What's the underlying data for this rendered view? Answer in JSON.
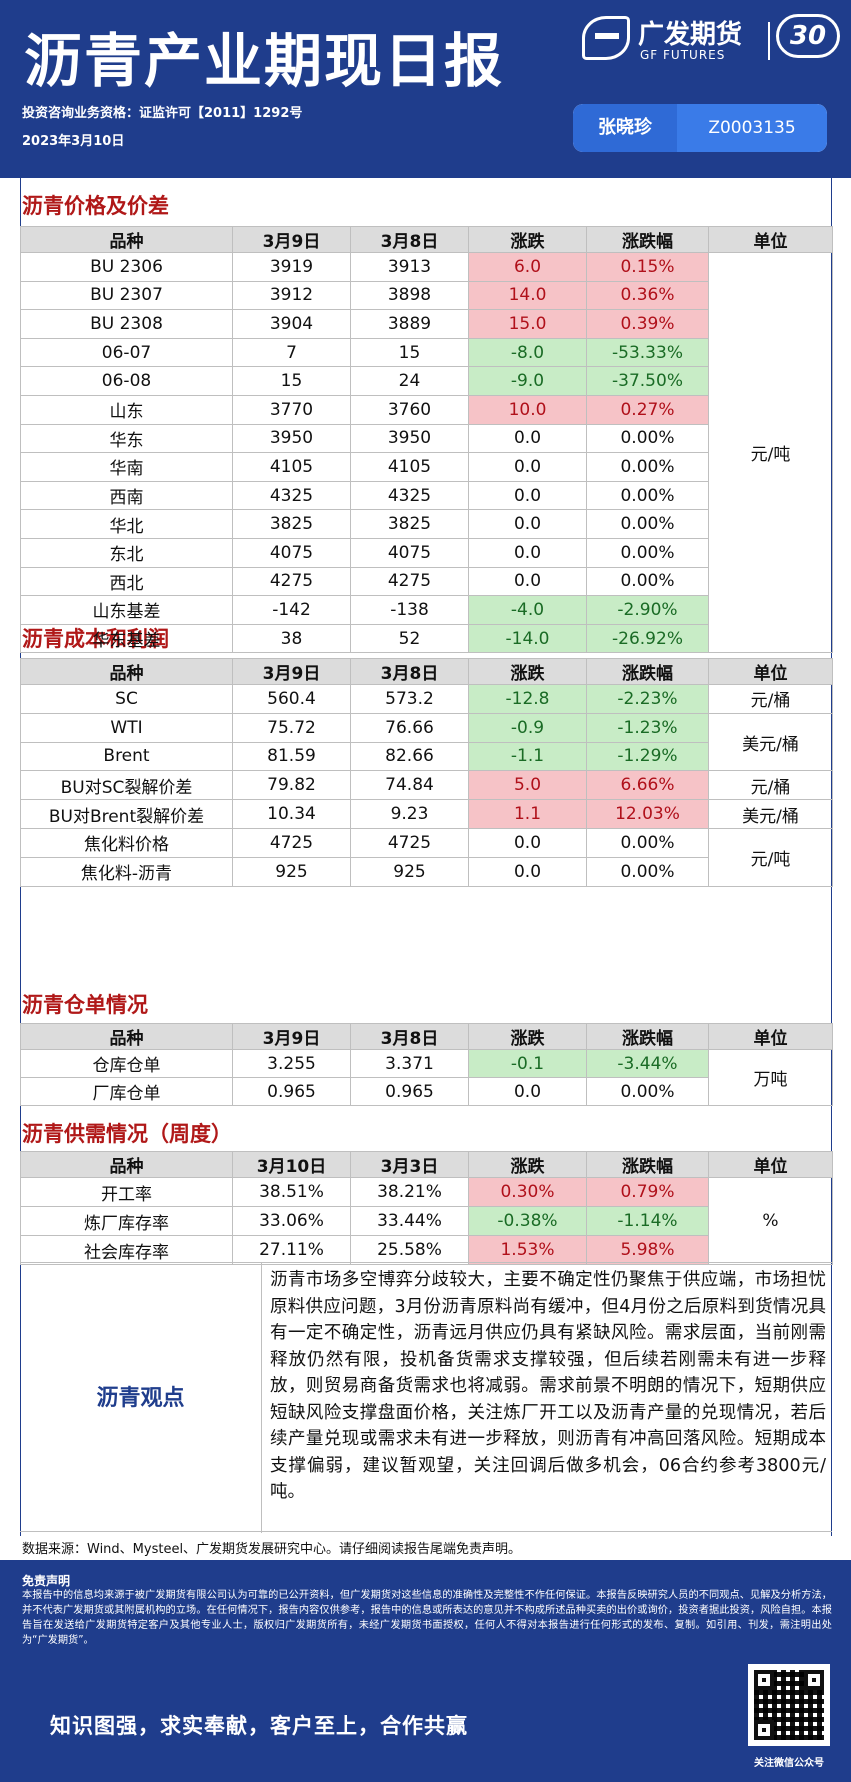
{
  "header": {
    "title": "沥青产业期现日报",
    "logo_cn": "广发期货",
    "logo_en": "GF FUTURES",
    "anniversary": "30",
    "qualification": "投资咨询业务资格：证监许可【2011】1292号",
    "date": "2023年3月10日",
    "author_name": "张晓珍",
    "author_id": "Z0003135"
  },
  "sections": [
    {
      "title": "沥青价格及价差",
      "headers": [
        "品种",
        "3月9日",
        "3月8日",
        "涨跌",
        "涨跌幅",
        "单位"
      ],
      "rows": [
        {
          "name": "BU 2306",
          "v1": "3919",
          "v2": "3913",
          "chg": "6.0",
          "pct": "0.15%",
          "dir": "up"
        },
        {
          "name": "BU 2307",
          "v1": "3912",
          "v2": "3898",
          "chg": "14.0",
          "pct": "0.36%",
          "dir": "up"
        },
        {
          "name": "BU 2308",
          "v1": "3904",
          "v2": "3889",
          "chg": "15.0",
          "pct": "0.39%",
          "dir": "up"
        },
        {
          "name": "06-07",
          "v1": "7",
          "v2": "15",
          "chg": "-8.0",
          "pct": "-53.33%",
          "dir": "down"
        },
        {
          "name": "06-08",
          "v1": "15",
          "v2": "24",
          "chg": "-9.0",
          "pct": "-37.50%",
          "dir": "down"
        },
        {
          "name": "山东",
          "v1": "3770",
          "v2": "3760",
          "chg": "10.0",
          "pct": "0.27%",
          "dir": "up"
        },
        {
          "name": "华东",
          "v1": "3950",
          "v2": "3950",
          "chg": "0.0",
          "pct": "0.00%",
          "dir": "flat"
        },
        {
          "name": "华南",
          "v1": "4105",
          "v2": "4105",
          "chg": "0.0",
          "pct": "0.00%",
          "dir": "flat"
        },
        {
          "name": "西南",
          "v1": "4325",
          "v2": "4325",
          "chg": "0.0",
          "pct": "0.00%",
          "dir": "flat"
        },
        {
          "name": "华北",
          "v1": "3825",
          "v2": "3825",
          "chg": "0.0",
          "pct": "0.00%",
          "dir": "flat"
        },
        {
          "name": "东北",
          "v1": "4075",
          "v2": "4075",
          "chg": "0.0",
          "pct": "0.00%",
          "dir": "flat"
        },
        {
          "name": "西北",
          "v1": "4275",
          "v2": "4275",
          "chg": "0.0",
          "pct": "0.00%",
          "dir": "flat"
        },
        {
          "name": "山东基差",
          "v1": "-142",
          "v2": "-138",
          "chg": "-4.0",
          "pct": "-2.90%",
          "dir": "down"
        },
        {
          "name": "华东基差",
          "v1": "38",
          "v2": "52",
          "chg": "-14.0",
          "pct": "-26.92%",
          "dir": "down"
        }
      ],
      "units": [
        {
          "label": "元/吨",
          "rows": 14
        }
      ]
    },
    {
      "title": "沥青成本和利润",
      "headers": [
        "品种",
        "3月9日",
        "3月8日",
        "涨跌",
        "涨跌幅",
        "单位"
      ],
      "rows": [
        {
          "name": "SC",
          "v1": "560.4",
          "v2": "573.2",
          "chg": "-12.8",
          "pct": "-2.23%",
          "dir": "down"
        },
        {
          "name": "WTI",
          "v1": "75.72",
          "v2": "76.66",
          "chg": "-0.9",
          "pct": "-1.23%",
          "dir": "down"
        },
        {
          "name": "Brent",
          "v1": "81.59",
          "v2": "82.66",
          "chg": "-1.1",
          "pct": "-1.29%",
          "dir": "down"
        },
        {
          "name": "BU对SC裂解价差",
          "v1": "79.82",
          "v2": "74.84",
          "chg": "5.0",
          "pct": "6.66%",
          "dir": "up"
        },
        {
          "name": "BU对Brent裂解价差",
          "v1": "10.34",
          "v2": "9.23",
          "chg": "1.1",
          "pct": "12.03%",
          "dir": "up"
        },
        {
          "name": "焦化料价格",
          "v1": "4725",
          "v2": "4725",
          "chg": "0.0",
          "pct": "0.00%",
          "dir": "flat"
        },
        {
          "name": "焦化料-沥青",
          "v1": "925",
          "v2": "925",
          "chg": "0.0",
          "pct": "0.00%",
          "dir": "flat"
        }
      ],
      "units": [
        {
          "label": "元/桶",
          "rows": 1
        },
        {
          "label": "美元/桶",
          "rows": 2
        },
        {
          "label": "元/桶",
          "rows": 1
        },
        {
          "label": "美元/桶",
          "rows": 1
        },
        {
          "label": "元/吨",
          "rows": 2
        }
      ]
    },
    {
      "title": "沥青仓单情况",
      "headers": [
        "品种",
        "3月9日",
        "3月8日",
        "涨跌",
        "涨跌幅",
        "单位"
      ],
      "rows": [
        {
          "name": "仓库仓单",
          "v1": "3.255",
          "v2": "3.371",
          "chg": "-0.1",
          "pct": "-3.44%",
          "dir": "down"
        },
        {
          "name": "厂库仓单",
          "v1": "0.965",
          "v2": "0.965",
          "chg": "0.0",
          "pct": "0.00%",
          "dir": "flat"
        }
      ],
      "units": [
        {
          "label": "万吨",
          "rows": 2
        }
      ]
    },
    {
      "title": "沥青供需情况（周度）",
      "headers": [
        "品种",
        "3月10日",
        "3月3日",
        "涨跌",
        "涨跌幅",
        "单位"
      ],
      "rows": [
        {
          "name": "开工率",
          "v1": "38.51%",
          "v2": "38.21%",
          "chg": "0.30%",
          "pct": "0.79%",
          "dir": "up"
        },
        {
          "name": "炼厂库存率",
          "v1": "33.06%",
          "v2": "33.44%",
          "chg": "-0.38%",
          "pct": "-1.14%",
          "dir": "down"
        },
        {
          "name": "社会库存率",
          "v1": "27.11%",
          "v2": "25.58%",
          "chg": "1.53%",
          "pct": "5.98%",
          "dir": "up"
        }
      ],
      "units": [
        {
          "label": "%",
          "rows": 3
        }
      ]
    }
  ],
  "opinion": {
    "label": "沥青观点",
    "text": "沥青市场多空博弈分歧较大，主要不确定性仍聚焦于供应端，市场担忧原料供应问题，3月份沥青原料尚有缓冲，但4月份之后原料到货情况具有一定不确定性，沥青远月供应仍具有紧缺风险。需求层面，当前刚需释放仍然有限，投机备货需求支撑较强，但后续若刚需未有进一步释放，则贸易商备货需求也将减弱。需求前景不明朗的情况下，短期供应短缺风险支撑盘面价格，关注炼厂开工以及沥青产量的兑现情况，若后续产量兑现或需求未有进一步释放，则沥青有冲高回落风险。短期成本支撑偏弱，建议暂观望，关注回调后做多机会，06合约参考3800元/吨。"
  },
  "source": "数据来源：Wind、Mysteel、广发期货发展研究中心。请仔细阅读报告尾端免责声明。",
  "disclaimer": {
    "title": "免责声明",
    "text": "本报告中的信息均来源于被广发期货有限公司认为可靠的已公开资料，但广发期货对这些信息的准确性及完整性不作任何保证。本报告反映研究人员的不同观点、见解及分析方法，并不代表广发期货或其附属机构的立场。在任何情况下，报告内容仅供参考，报告中的信息或所表达的意见并不构成所述品种买卖的出价或询价，投资者据此投资，风险自担。本报告旨在发送给广发期货特定客户及其他专业人士，版权归广发期货所有，未经广发期货书面授权，任何人不得对本报告进行任何形式的发布、复制。如引用、刊发，需注明出处为“广发期货”。",
    "slogan": "知识图强，求实奉献，客户至上，合作共赢",
    "qr_caption": "关注微信公众号"
  }
}
